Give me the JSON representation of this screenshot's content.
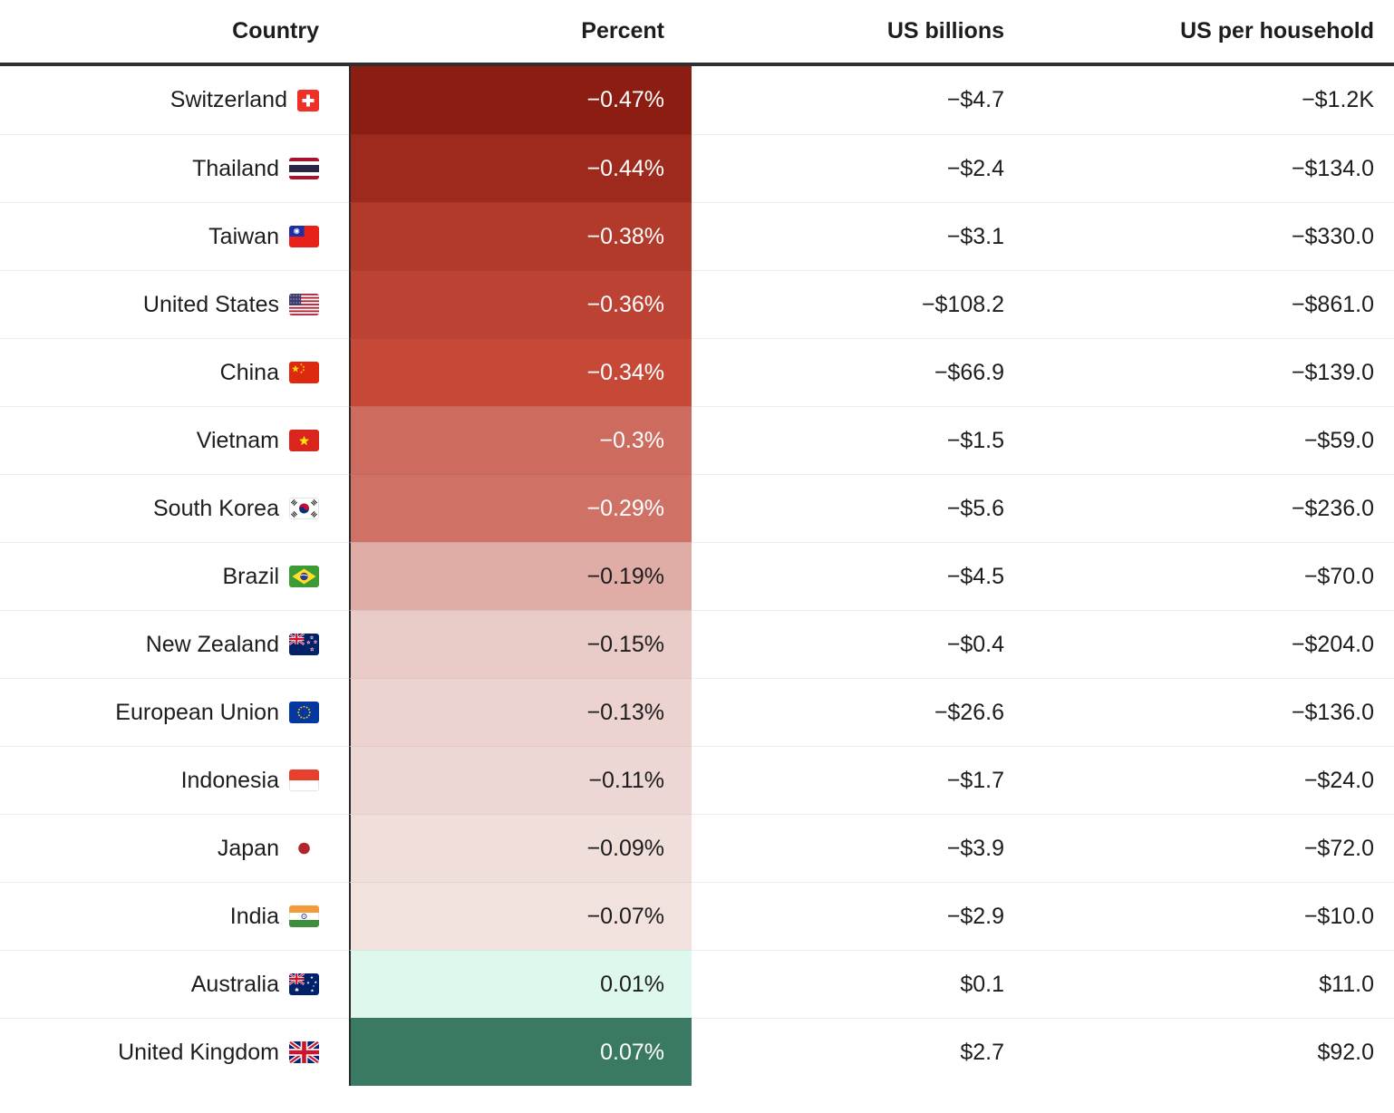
{
  "header": {
    "columns": [
      "Country",
      "Percent",
      "US billions",
      "US per household"
    ]
  },
  "rows": [
    {
      "country": "Switzerland",
      "flag": "ch",
      "percent": "−0.47%",
      "billions": "−$4.7",
      "household": "−$1.2K",
      "cell_color": "#8C1D12"
    },
    {
      "country": "Thailand",
      "flag": "th",
      "percent": "−0.44%",
      "billions": "−$2.4",
      "household": "−$134.0",
      "cell_color": "#9D2A1C"
    },
    {
      "country": "Taiwan",
      "flag": "tw",
      "percent": "−0.38%",
      "billions": "−$3.1",
      "household": "−$330.0",
      "cell_color": "#B23A2A"
    },
    {
      "country": "United States",
      "flag": "us",
      "percent": "−0.36%",
      "billions": "−$108.2",
      "household": "−$861.0",
      "cell_color": "#BC4233"
    },
    {
      "country": "China",
      "flag": "cn",
      "percent": "−0.34%",
      "billions": "−$66.9",
      "household": "−$139.0",
      "cell_color": "#C64938"
    },
    {
      "country": "Vietnam",
      "flag": "vn",
      "percent": "−0.3%",
      "billions": "−$1.5",
      "household": "−$59.0",
      "cell_color": "#CE6B5F"
    },
    {
      "country": "South Korea",
      "flag": "kr",
      "percent": "−0.29%",
      "billions": "−$5.6",
      "household": "−$236.0",
      "cell_color": "#D07166"
    },
    {
      "country": "Brazil",
      "flag": "br",
      "percent": "−0.19%",
      "billions": "−$4.5",
      "household": "−$70.0",
      "cell_color": "#E0ACA6"
    },
    {
      "country": "New Zealand",
      "flag": "nz",
      "percent": "−0.15%",
      "billions": "−$0.4",
      "household": "−$204.0",
      "cell_color": "#E9CBC8"
    },
    {
      "country": "European Union",
      "flag": "eu",
      "percent": "−0.13%",
      "billions": "−$26.6",
      "household": "−$136.0",
      "cell_color": "#ECD3D0"
    },
    {
      "country": "Indonesia",
      "flag": "id",
      "percent": "−0.11%",
      "billions": "−$1.7",
      "household": "−$24.0",
      "cell_color": "#EDD7D4"
    },
    {
      "country": "Japan",
      "flag": "jp",
      "percent": "−0.09%",
      "billions": "−$3.9",
      "household": "−$72.0",
      "cell_color": "#F0DEDA"
    },
    {
      "country": "India",
      "flag": "in",
      "percent": "−0.07%",
      "billions": "−$2.9",
      "household": "−$10.0",
      "cell_color": "#F2E2DE"
    },
    {
      "country": "Australia",
      "flag": "au",
      "percent": "0.01%",
      "billions": "$0.1",
      "household": "$11.0",
      "cell_color": "#DFF8EE"
    },
    {
      "country": "United Kingdom",
      "flag": "gb",
      "percent": "0.07%",
      "billions": "$2.7",
      "household": "$92.0",
      "cell_color": "#3B7A62"
    }
  ],
  "chart_data": {
    "type": "table",
    "title": "",
    "columns": [
      "Country",
      "Percent",
      "US billions",
      "US per household"
    ],
    "categories": [
      "Switzerland",
      "Thailand",
      "Taiwan",
      "United States",
      "China",
      "Vietnam",
      "South Korea",
      "Brazil",
      "New Zealand",
      "European Union",
      "Indonesia",
      "Japan",
      "India",
      "Australia",
      "United Kingdom"
    ],
    "series": [
      {
        "name": "Percent",
        "values": [
          -0.47,
          -0.44,
          -0.38,
          -0.36,
          -0.34,
          -0.3,
          -0.29,
          -0.19,
          -0.15,
          -0.13,
          -0.11,
          -0.09,
          -0.07,
          0.01,
          0.07
        ]
      },
      {
        "name": "US billions",
        "values": [
          -4.7,
          -2.4,
          -3.1,
          -108.2,
          -66.9,
          -1.5,
          -5.6,
          -4.5,
          -0.4,
          -26.6,
          -1.7,
          -3.9,
          -2.9,
          0.1,
          2.7
        ]
      },
      {
        "name": "US per household",
        "values": [
          -1200,
          -134,
          -330,
          -861,
          -139,
          -59,
          -236,
          -70,
          -204,
          -136,
          -24,
          -72,
          -10,
          11,
          92
        ]
      }
    ],
    "legend_position": "none",
    "grid": false,
    "heatmap_column": "Percent",
    "negative_color_range": [
      "#8C1D12",
      "#F2E2DE"
    ],
    "positive_color_range": [
      "#DFF8EE",
      "#3B7A62"
    ]
  }
}
